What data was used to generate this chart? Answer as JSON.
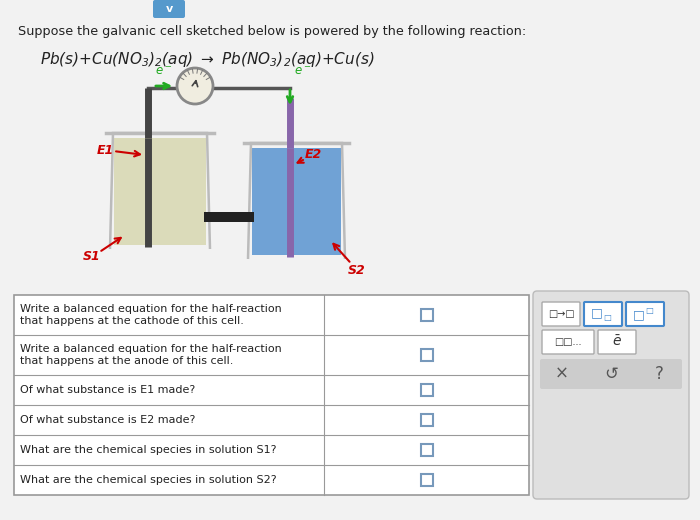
{
  "bg_color": "#f2f2f2",
  "title_text": "Suppose the galvanic cell sketched below is powered by the following reaction:",
  "label_color": "#cc0000",
  "electron_color": "#22aa22",
  "beaker1_liquid_color": "#d8d8b0",
  "beaker2_liquid_color": "#4488cc",
  "electrode1_color": "#444444",
  "electrode2_color": "#8866aa",
  "salt_bridge_color": "#222222",
  "table_bg": "#ffffff",
  "table_border": "#999999",
  "sidebar_bg": "#e0e0e0",
  "table_rows": [
    "Write a balanced equation for the half-reaction\nthat happens at the cathode of this cell.",
    "Write a balanced equation for the half-reaction\nthat happens at the anode of this cell.",
    "Of what substance is E₁ made?",
    "Of what substance is E₂ made?",
    "What are the chemical species in solution S₁?",
    "What are the chemical species in solution S₂?"
  ],
  "table_rows_display": [
    "Write a balanced equation for the half-reaction\nthat happens at the cathode of this cell.",
    "Write a balanced equation for the half-reaction\nthat happens at the anode of this cell.",
    "Of what substance is E1 made?",
    "Of what substance is E2 made?",
    "What are the chemical species in solution S1?",
    "What are the chemical species in solution S2?"
  ]
}
